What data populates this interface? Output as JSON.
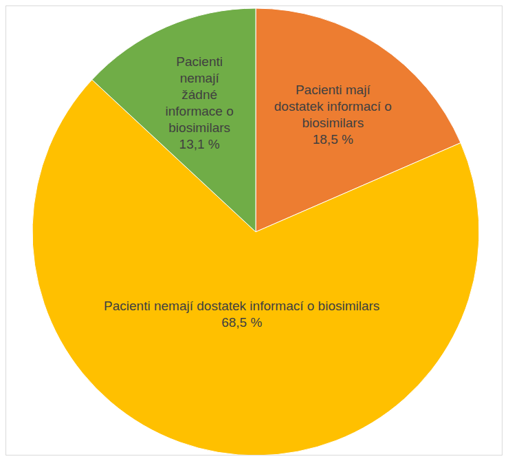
{
  "chart_data": {
    "type": "pie",
    "categories": [
      "Pacienti mají dostatek informací o biosimilars",
      "Pacienti nemají dostatek informací o biosimilars",
      "Pacienti nemají žádné informace o biosimilars"
    ],
    "values": [
      18.5,
      68.5,
      13.1
    ],
    "value_labels": [
      "18,5 %",
      "68,5 %",
      "13,1 %"
    ],
    "colors": [
      "#ed7d31",
      "#ffc000",
      "#70ad47"
    ],
    "data_labels": true
  }
}
